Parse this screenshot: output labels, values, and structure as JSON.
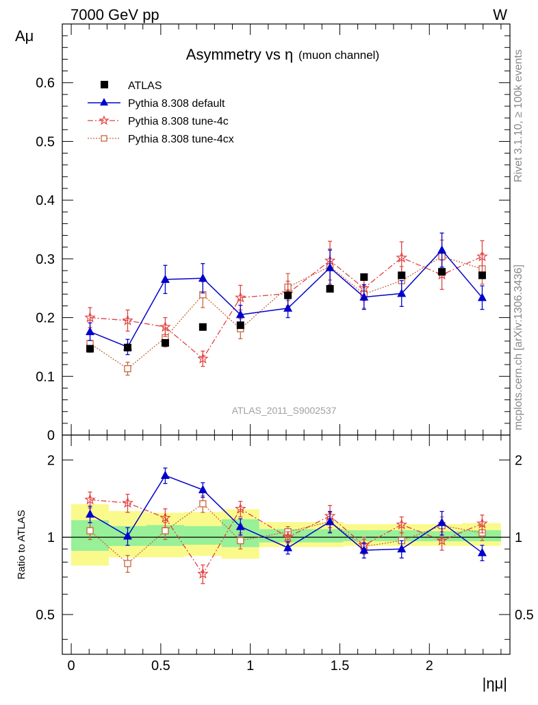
{
  "header": {
    "left": "7000 GeV pp",
    "right": "W"
  },
  "side": {
    "rivet": "Rivet 3.1.10, ≥ 100k events",
    "mcplots": "mcplots.cern.ch [arXiv:1306.3436]"
  },
  "colors": {
    "atlas": "#000000",
    "default": "#0000cc",
    "tune4c": "#e04040",
    "tune4cx": "#c8643c",
    "band_inner": "#98f098",
    "band_outer": "#fafa8c"
  },
  "chart_data": [
    {
      "type": "scatter",
      "title": "Asymmetry vs η",
      "title_note": "(muon channel)",
      "ylabel": "Aμ",
      "watermark": "ATLAS_2011_S9002537",
      "xlim": [
        -0.05,
        2.45
      ],
      "ylim": [
        0,
        0.7
      ],
      "yticks": [
        0.1,
        0.2,
        0.3,
        0.4,
        0.5,
        0.6
      ],
      "ytick_labels": [
        "0.1",
        "0.2",
        "0.3",
        "0.4",
        "0.5",
        "0.6"
      ],
      "y_bottom_label": "0",
      "legend_position": "top-left",
      "x": [
        0.105,
        0.315,
        0.525,
        0.735,
        0.945,
        1.21,
        1.445,
        1.635,
        1.845,
        2.07,
        2.295
      ],
      "x_bins": [
        [
          0,
          0.21
        ],
        [
          0.21,
          0.42
        ],
        [
          0.42,
          0.63
        ],
        [
          0.63,
          0.84
        ],
        [
          0.84,
          1.05
        ],
        [
          1.05,
          1.37
        ],
        [
          1.37,
          1.52
        ],
        [
          1.52,
          1.74
        ],
        [
          1.74,
          1.95
        ],
        [
          1.95,
          2.18
        ],
        [
          2.18,
          2.4
        ]
      ],
      "series": [
        {
          "name": "ATLAS",
          "marker": "square",
          "line": "none",
          "y": [
            0.147,
            0.149,
            0.157,
            0.184,
            0.187,
            0.238,
            0.249,
            0.269,
            0.272,
            0.278,
            0.272
          ],
          "err": [
            0.003,
            0.003,
            0.003,
            0.003,
            0.003,
            0.003,
            0.003,
            0.003,
            0.003,
            0.003,
            0.003
          ]
        },
        {
          "name": "Pythia 8.308 default",
          "marker": "triangle",
          "line": "solid",
          "y": [
            0.176,
            0.15,
            0.265,
            0.267,
            0.205,
            0.216,
            0.285,
            0.235,
            0.241,
            0.315,
            0.234
          ],
          "err": [
            0.015,
            0.013,
            0.024,
            0.025,
            0.016,
            0.016,
            0.03,
            0.021,
            0.022,
            0.029,
            0.02
          ]
        },
        {
          "name": "Pythia 8.308 tune-4c",
          "marker": "star",
          "line": "dashdot",
          "y": [
            0.2,
            0.195,
            0.184,
            0.13,
            0.234,
            0.241,
            0.297,
            0.25,
            0.302,
            0.273,
            0.304
          ],
          "err": [
            0.017,
            0.018,
            0.016,
            0.013,
            0.021,
            0.021,
            0.033,
            0.021,
            0.027,
            0.025,
            0.027
          ]
        },
        {
          "name": "Pythia 8.308 tune-4cx",
          "marker": "opensquare",
          "line": "dotted",
          "y": [
            0.156,
            0.113,
            0.166,
            0.239,
            0.181,
            0.252,
            0.287,
            0.24,
            0.263,
            0.304,
            0.283
          ],
          "err": [
            0.015,
            0.011,
            0.016,
            0.022,
            0.017,
            0.023,
            0.03,
            0.024,
            0.024,
            0.028,
            0.026
          ]
        }
      ]
    },
    {
      "type": "scatter",
      "ylabel": "Ratio to ATLAS",
      "xlabel": "|ημ|",
      "xlim": [
        -0.05,
        2.45
      ],
      "ylim": [
        0.35,
        2.5
      ],
      "yticks": [
        0.5,
        1,
        2
      ],
      "ytick_labels": [
        "0.5",
        "1",
        "2"
      ],
      "xticks": [
        0,
        0.5,
        1,
        1.5,
        2
      ],
      "xtick_labels": [
        "0",
        "0.5",
        "1",
        "1.5",
        "2"
      ],
      "reference_line": 1,
      "bands": {
        "inner": [
          [
            0.885,
            1.165
          ],
          [
            0.925,
            1.105
          ],
          [
            0.925,
            1.115
          ],
          [
            0.935,
            1.105
          ],
          [
            0.915,
            1.175
          ],
          [
            0.955,
            1.075
          ],
          [
            0.955,
            1.075
          ],
          [
            0.965,
            1.065
          ],
          [
            0.965,
            1.065
          ],
          [
            0.965,
            1.055
          ],
          [
            0.965,
            1.065
          ]
        ],
        "outer": [
          [
            0.775,
            1.345
          ],
          [
            0.835,
            1.265
          ],
          [
            0.835,
            1.245
          ],
          [
            0.845,
            1.255
          ],
          [
            0.825,
            1.285
          ],
          [
            0.915,
            1.145
          ],
          [
            0.915,
            1.145
          ],
          [
            0.925,
            1.125
          ],
          [
            0.925,
            1.125
          ],
          [
            0.925,
            1.125
          ],
          [
            0.925,
            1.135
          ]
        ]
      },
      "series": [
        {
          "name": "Pythia 8.308 default",
          "marker": "triangle",
          "line": "solid",
          "y": [
            1.23,
            1.01,
            1.74,
            1.53,
            1.1,
            0.91,
            1.15,
            0.89,
            0.9,
            1.14,
            0.87
          ],
          "err": [
            0.09,
            0.08,
            0.12,
            0.1,
            0.08,
            0.05,
            0.11,
            0.06,
            0.07,
            0.12,
            0.06
          ]
        },
        {
          "name": "Pythia 8.308 tune-4c",
          "marker": "star",
          "line": "dashdot",
          "y": [
            1.4,
            1.36,
            1.19,
            0.72,
            1.29,
            1.0,
            1.21,
            0.93,
            1.12,
            0.97,
            1.13
          ],
          "err": [
            0.1,
            0.11,
            0.1,
            0.06,
            0.09,
            0.05,
            0.12,
            0.07,
            0.08,
            0.08,
            0.09
          ]
        },
        {
          "name": "Pythia 8.308 tune-4cx",
          "marker": "opensquare",
          "line": "dotted",
          "y": [
            1.06,
            0.79,
            1.06,
            1.35,
            0.97,
            1.05,
            1.15,
            0.92,
            0.97,
            1.11,
            1.04
          ],
          "err": [
            0.08,
            0.06,
            0.08,
            0.1,
            0.07,
            0.05,
            0.1,
            0.06,
            0.07,
            0.09,
            0.07
          ]
        }
      ]
    }
  ]
}
